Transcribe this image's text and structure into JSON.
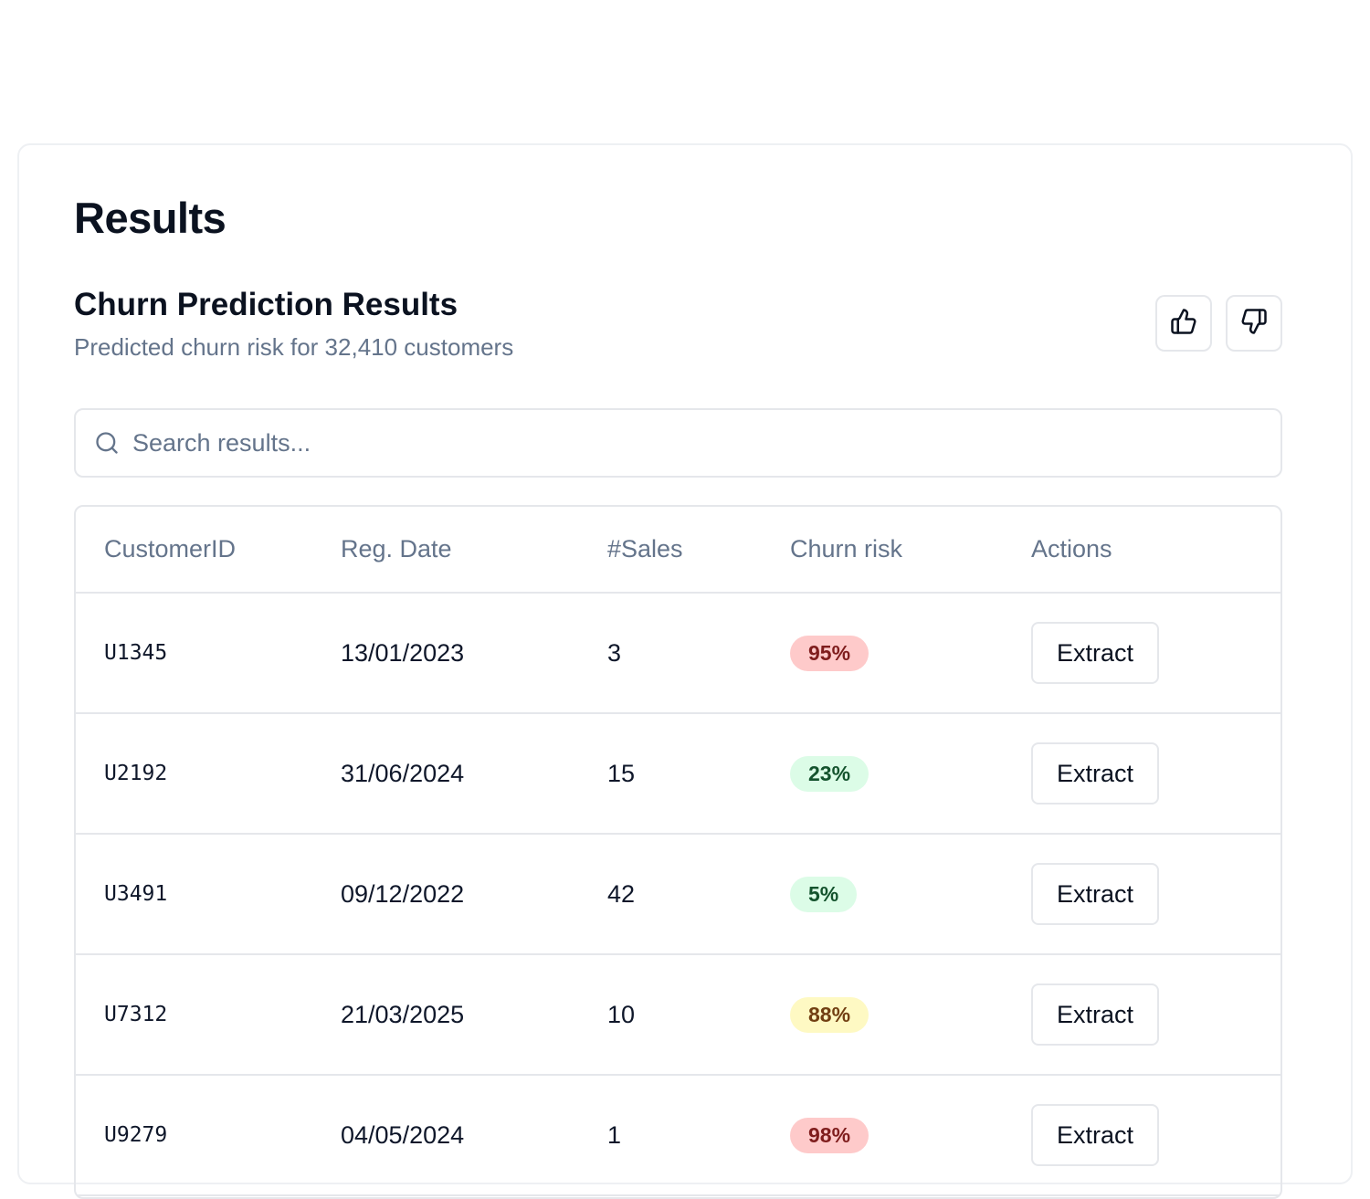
{
  "page": {
    "title": "Results"
  },
  "section": {
    "title": "Churn Prediction Results",
    "subtitle": "Predicted churn risk for 32,410 customers"
  },
  "feedback": {
    "up_icon": "thumbs-up-icon",
    "down_icon": "thumbs-down-icon"
  },
  "search": {
    "placeholder": "Search results...",
    "value": "",
    "icon": "search-icon"
  },
  "table": {
    "headers": [
      "CustomerID",
      "Reg. Date",
      "#Sales",
      "Churn risk",
      "Actions"
    ],
    "rows": [
      {
        "id": "U1345",
        "date": "13/01/2023",
        "sales": "3",
        "risk": "95%",
        "risk_level": "high",
        "action": "Extract"
      },
      {
        "id": "U2192",
        "date": "31/06/2024",
        "sales": "15",
        "risk": "23%",
        "risk_level": "low",
        "action": "Extract"
      },
      {
        "id": "U3491",
        "date": "09/12/2022",
        "sales": "42",
        "risk": "5%",
        "risk_level": "low",
        "action": "Extract"
      },
      {
        "id": "U7312",
        "date": "21/03/2025",
        "sales": "10",
        "risk": "88%",
        "risk_level": "medium",
        "action": "Extract"
      },
      {
        "id": "U9279",
        "date": "04/05/2024",
        "sales": "1",
        "risk": "98%",
        "risk_level": "high",
        "action": "Extract"
      }
    ]
  },
  "colors": {
    "high_bg": "#fecaca",
    "high_fg": "#7f1d1d",
    "low_bg": "#dcfce7",
    "low_fg": "#14532d",
    "medium_bg": "#fef9c3",
    "medium_fg": "#713f12"
  }
}
